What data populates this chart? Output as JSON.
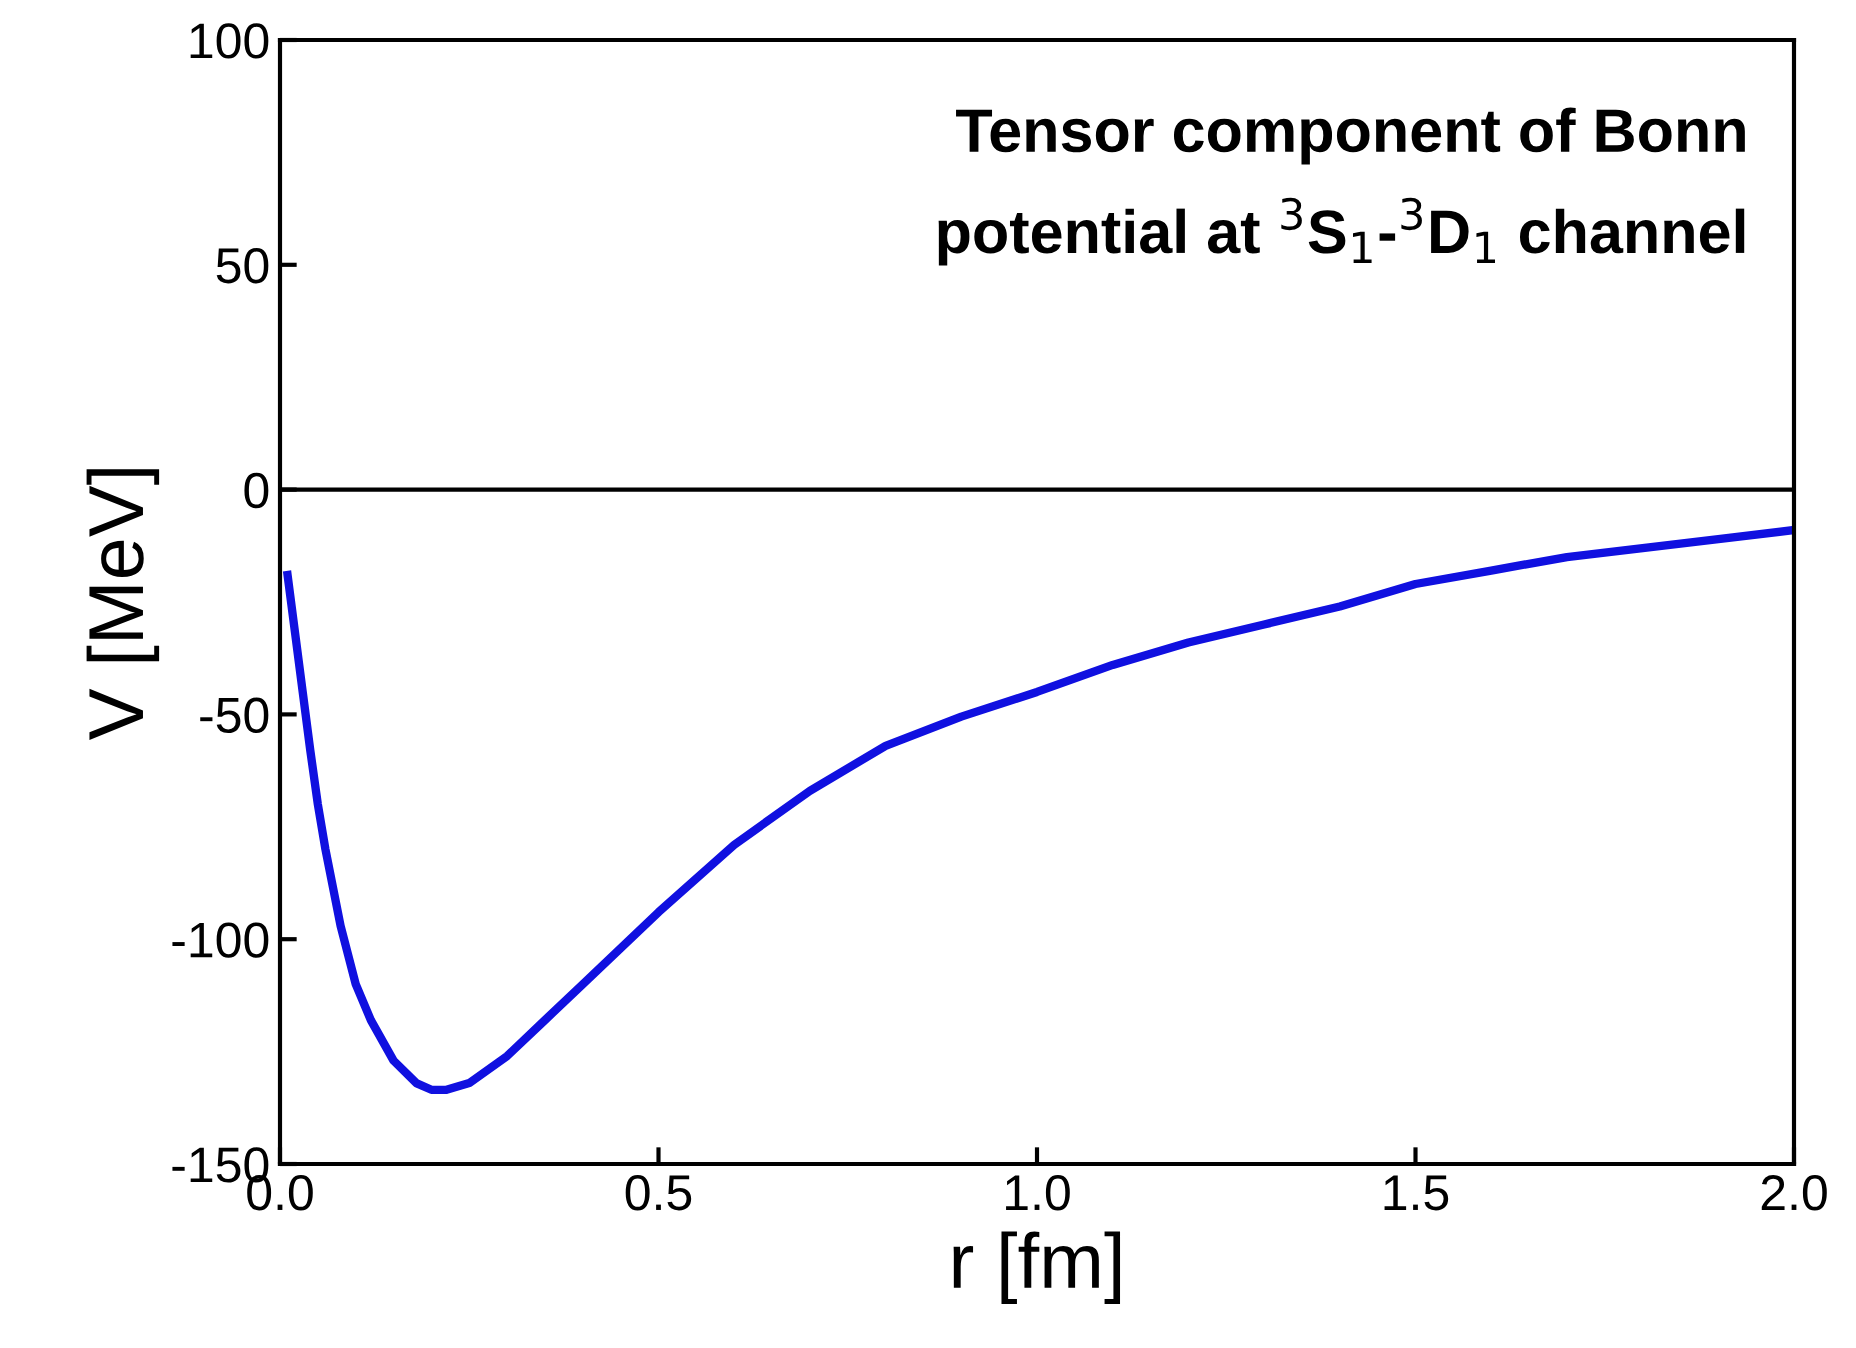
{
  "chart_data": {
    "type": "line",
    "xlabel": "r [fm]",
    "ylabel": "V [MeV]",
    "annotations": [
      "Tensor component of Bonn\npotential at $^{3}$S$_{1}$-$^{3}$D$_{1}$ channel"
    ],
    "x": [
      0.01,
      0.02,
      0.03,
      0.04,
      0.05,
      0.06,
      0.08,
      0.1,
      0.12,
      0.15,
      0.18,
      0.2,
      0.22,
      0.25,
      0.3,
      0.35,
      0.4,
      0.45,
      0.5,
      0.6,
      0.7,
      0.8,
      0.9,
      1.0,
      1.1,
      1.2,
      1.3,
      1.4,
      1.5,
      1.6,
      1.7,
      1.8,
      1.9,
      2.0
    ],
    "series": [
      {
        "color": "#1010e0",
        "values": [
          -19,
          -32,
          -45,
          -58,
          -70,
          -80,
          -97,
          -110,
          -118,
          -127,
          -132,
          -133.5,
          -133.5,
          -132,
          -126,
          -118,
          -110,
          -102,
          -94,
          -79,
          -67,
          -57,
          -50.5,
          -45,
          -39,
          -34,
          -30,
          -26,
          -21,
          -18,
          -15,
          -13,
          -11,
          -9
        ]
      }
    ],
    "xlim": [
      0,
      2
    ],
    "ylim": [
      -150,
      100
    ],
    "xticks": [
      {
        "value": 0,
        "label": "0.0"
      },
      0.5,
      {
        "value": 1,
        "label": "1.0"
      },
      1.5,
      {
        "value": 2,
        "label": "2.0"
      }
    ],
    "yticks": [
      -150,
      -100,
      -50,
      0,
      50,
      100
    ],
    "ref_lines": [
      {
        "axis": "y",
        "value": 0,
        "color": "#000000"
      }
    ],
    "grid": false,
    "legend": false,
    "marker": "none",
    "line_style": "solid"
  }
}
